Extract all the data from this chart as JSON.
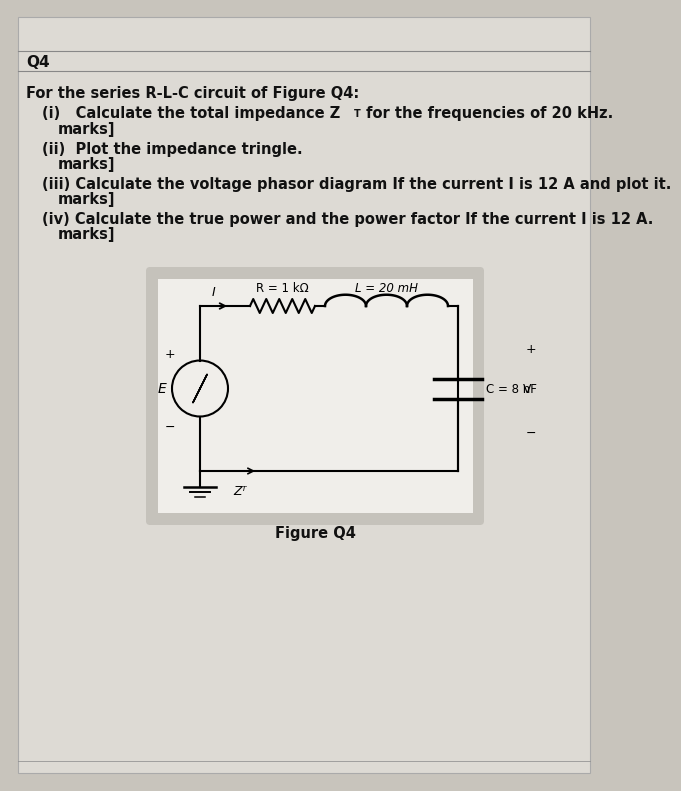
{
  "title": "Q4",
  "bg_outer": "#c8c4bc",
  "bg_page": "#dddad4",
  "bg_circuit": "#f0eeea",
  "text_color": "#111111",
  "R_label": "R = 1 kΩ",
  "L_label": "L = 20 mH",
  "C_label": "C = 8 nF",
  "Vc_label": "V⁣",
  "E_label": "E",
  "ZT_label": "Zᵀ",
  "figure_label": "Figure Q4",
  "line1": "For the series R-L-C circuit of Figure Q4:",
  "line2a": "(i)   Calculate the total impedance Z",
  "line2b": "T",
  "line2c": " for the frequencies of 20 kHz.",
  "line3": "      marks]",
  "line4": "(ii)  Plot the impedance tringle.",
  "line5": "      marks]",
  "line6": "(iii) Calculate the voltage phasor diagram If the current I is 12 A and plot it.",
  "line7": "      marks]",
  "line8": "(iv) Calculate the true power and the power factor If the current I is 12 A.",
  "line9": "      marks]"
}
